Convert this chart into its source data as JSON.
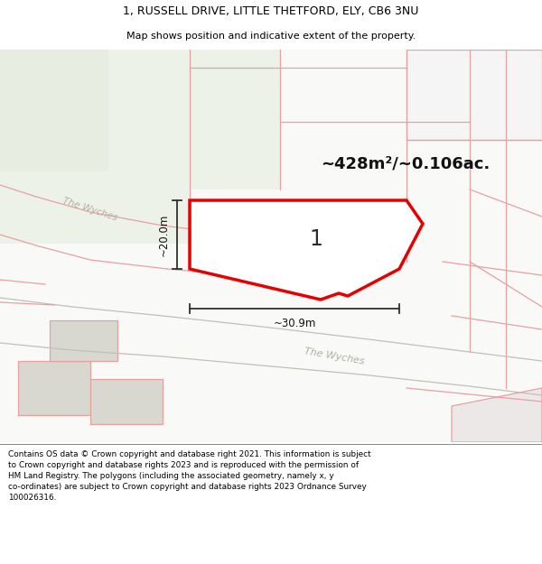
{
  "title_line1": "1, RUSSELL DRIVE, LITTLE THETFORD, ELY, CB6 3NU",
  "title_line2": "Map shows position and indicative extent of the property.",
  "area_label": "~428m²/~0.106ac.",
  "plot_number": "1",
  "dim_width": "~30.9m",
  "dim_height": "~20.0m",
  "footer_text": "Contains OS data © Crown copyright and database right 2021. This information is subject to Crown copyright and database rights 2023 and is reproduced with the permission of HM Land Registry. The polygons (including the associated geometry, namely x, y co-ordinates) are subject to Crown copyright and database rights 2023 Ordnance Survey 100026316.",
  "bg": "#ffffff",
  "map_bg": "#f8f8f6",
  "light_green": "#edf2e8",
  "light_green2": "#e8ede2",
  "plot_red": "#e60000",
  "plot_pink": "#f5c8c8",
  "line_pink": "#e8a0a0",
  "line_gray": "#c0c0b8",
  "text_gray": "#b0b0a0",
  "arrow_color": "#303030"
}
